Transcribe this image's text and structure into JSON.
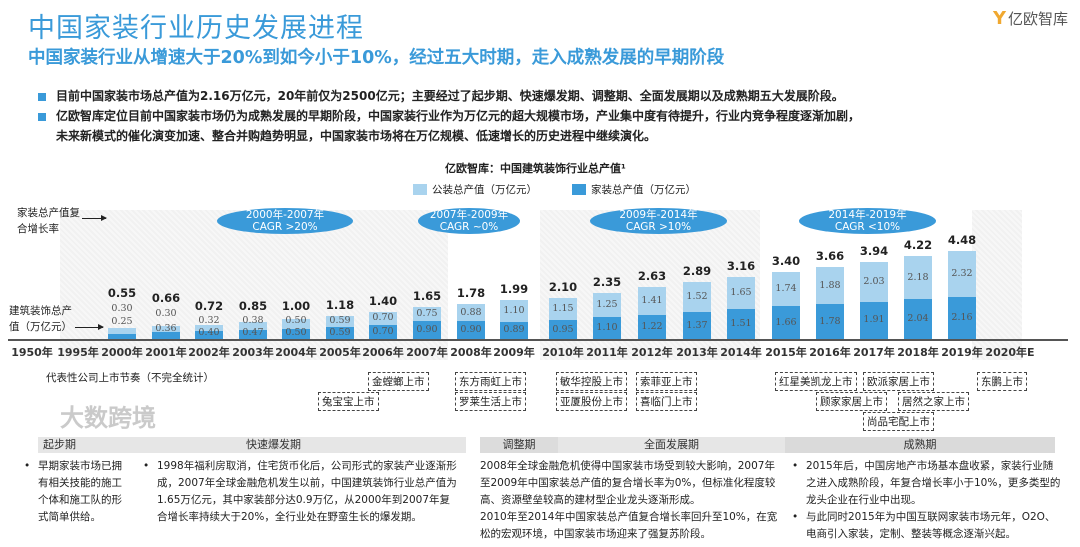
{
  "header": {
    "title": "中国家装行业历史发展进程",
    "subtitle": "中国家装行业从增速大于20%到如今小于10%，经过五大时期，走入成熟发展的早期阶段",
    "logo": "亿欧智库",
    "logo_mark": "Y"
  },
  "bullets": [
    "目前中国家装市场总产值为2.16万亿元，20年前仅为2500亿元；主要经过了起步期、快速爆发期、调整期、全面发展期以及成熟期五大发展阶段。",
    "亿欧智库定位目前中国家装市场仍为成熟发展的早期阶段，中国家装行业作为万亿元的超大规模市场，产业集中度有待提升，行业内竞争程度逐渐加剧，",
    "未来新模式的催化演变加速、整合并购趋势明显，中国家装市场将在万亿规模、低速增长的历史进程中继续演化。"
  ],
  "side_labels": {
    "cagr": [
      "家装总产值复",
      "合增长率"
    ],
    "total": [
      "建筑装饰总产",
      "值（万亿元）"
    ]
  },
  "cagr": [
    {
      "l1": "2000年-2007年",
      "l2": "CAGR >20%"
    },
    {
      "l1": "2007年-2009年",
      "l2": "CAGR ~0%"
    },
    {
      "l1": "2009年-2014年",
      "l2": "CAGR >10%"
    },
    {
      "l1": "2014年-2019年",
      "l2": "CAGR <10%"
    }
  ],
  "chart_data": {
    "type": "bar",
    "stacked": true,
    "title": "亿欧智库：中国建筑装饰行业总产值¹",
    "colors": {
      "public": "#a9d3ee",
      "home": "#3a9ad9"
    },
    "legend": [
      "公装总产值（万亿元）",
      "家装总产值（万亿元）"
    ],
    "categories": [
      "1950年",
      "1995年",
      "2000年",
      "2001年",
      "2002年",
      "2003年",
      "2004年",
      "2005年",
      "2006年",
      "2007年",
      "2008年",
      "2009年",
      "2010年",
      "2011年",
      "2012年",
      "2013年",
      "2014年",
      "2015年",
      "2016年",
      "2017年",
      "2018年",
      "2019年",
      "2020年E"
    ],
    "series": [
      {
        "name": "家装总产值（万亿元）",
        "values": [
          null,
          null,
          0.25,
          0.36,
          0.4,
          0.47,
          0.5,
          0.59,
          0.7,
          0.9,
          0.9,
          0.89,
          0.95,
          1.1,
          1.22,
          1.37,
          1.51,
          1.66,
          1.78,
          1.91,
          2.04,
          2.16,
          null
        ]
      },
      {
        "name": "公装总产值（万亿元）",
        "values": [
          null,
          null,
          0.3,
          0.3,
          0.32,
          0.38,
          0.5,
          0.59,
          0.7,
          0.75,
          0.88,
          1.1,
          1.15,
          1.25,
          1.41,
          1.52,
          1.65,
          1.74,
          1.88,
          2.03,
          2.18,
          2.32,
          null
        ]
      }
    ],
    "totals": [
      null,
      null,
      "0.55",
      "0.66",
      "0.72",
      "0.85",
      "1.00",
      "1.18",
      "1.40",
      "1.65",
      "1.78",
      "1.99",
      "2.10",
      "2.35",
      "2.63",
      "2.89",
      "3.16",
      "3.40",
      "3.66",
      "3.94",
      "4.22",
      "4.48",
      null
    ],
    "labels_home": [
      null,
      null,
      "0.25",
      "0.36",
      "0.40",
      "0.47",
      "0.50",
      "0.59",
      "0.70",
      "0.90",
      "0.90",
      "0.89",
      "0.95",
      "1.10",
      "1.22",
      "1.37",
      "1.51",
      "1.66",
      "1.78",
      "1.91",
      "2.04",
      "2.16",
      null
    ],
    "labels_public": [
      null,
      null,
      "0.30",
      "0.30",
      "0.32",
      "0.38",
      "0.50",
      "0.59",
      "0.70",
      "0.75",
      "0.88",
      "1.10",
      "1.15",
      "1.25",
      "1.41",
      "1.52",
      "1.65",
      "1.74",
      "1.88",
      "2.03",
      "2.18",
      "2.32",
      null
    ]
  },
  "listings": {
    "label": "代表性公司上市节奏（不完全统计）",
    "items": [
      "金螳螂上市",
      "兔宝宝上市",
      "东方雨虹上市",
      "罗莱生活上市",
      "敏华控股上市",
      "亚厦股份上市",
      "索菲亚上市",
      "喜临门上市",
      "红星美凯龙上市",
      "欧派家居上市",
      "顾家家居上市",
      "居然之家上市",
      "尚品宅配上市",
      "东鹏上市"
    ]
  },
  "phases": [
    {
      "name": "起步期",
      "text": [
        "早期家装市场已拥有相关技能的施工个体和施工队的形式简单供给。"
      ]
    },
    {
      "name": "快速爆发期",
      "text": [
        "1998年福利房取消，住宅货币化后，公司形式的家装产业逐渐形成，2007年全球金融危机发生以前，中国建筑装饰行业总产值为1.65万亿元，其中家装部分达0.9万亿，从2000年到2007年复合增长率持续大于20%，全行业处在野蛮生长的爆发期。"
      ]
    },
    {
      "name": "调整期",
      "text": [
        "2008年全球金融危机使得中国家装市场受到较大影响，2007年至2009年中国家装总产值的复合增长率为0%，但标准化程度较高、资源壁垒较高的建材型企业龙头逐渐形成。",
        "2010年至2014年中国家装总产值复合增长率回升至10%，在宽松的宏观环境，中国家装市场迎来了强复苏阶段。"
      ]
    },
    {
      "name": "全面发展期"
    },
    {
      "name": "成熟期",
      "text": [
        "2015年后，中国房地产市场基本盘收紧，家装行业随之进入成熟阶段，年复合增长率小于10%，更多类型的龙头企业在行业中出现。",
        "与此同时2015年为中国互联网家装市场元年，O2O、电商引入家装，定制、整装等概念逐渐兴起。"
      ]
    }
  ],
  "watermarks": [
    "大数跨境"
  ]
}
